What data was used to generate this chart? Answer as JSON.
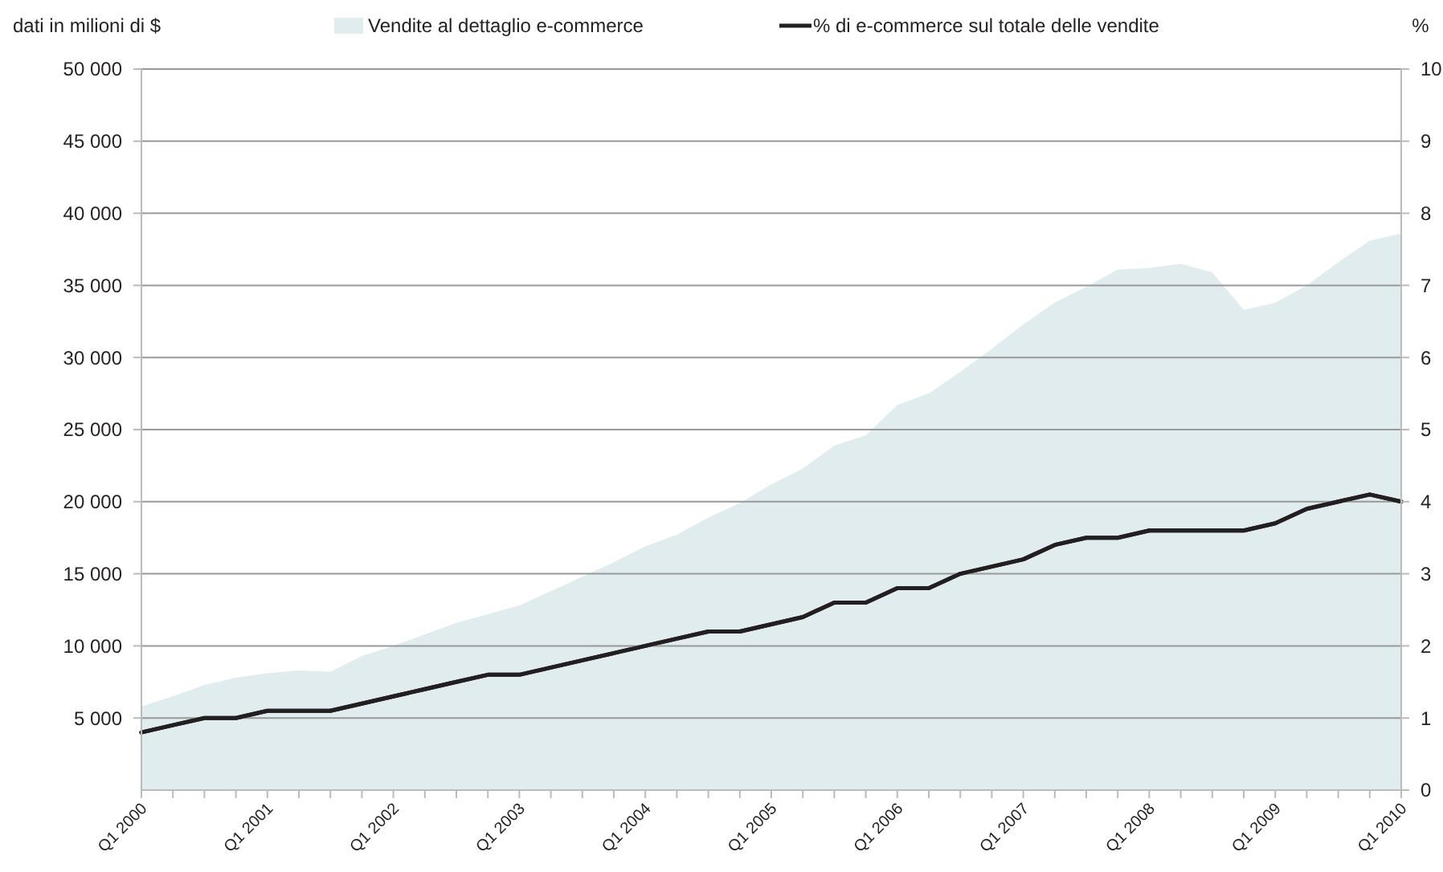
{
  "chart_data": {
    "type": "area",
    "categories": [
      "Q1 2000",
      null,
      null,
      null,
      "Q1 2001",
      null,
      null,
      null,
      "Q1 2002",
      null,
      null,
      null,
      "Q1 2003",
      null,
      null,
      null,
      "Q1 2004",
      null,
      null,
      null,
      "Q1 2005",
      null,
      null,
      null,
      "Q1 2006",
      null,
      null,
      null,
      "Q1 2007",
      null,
      null,
      null,
      "Q1 2008",
      null,
      null,
      null,
      "Q1 2009",
      null,
      null,
      null,
      "Q1 2010"
    ],
    "series": [
      {
        "name": "Vendite al dettaglio e-commerce",
        "color": "#e0ecee",
        "values": [
          5800,
          6500,
          7300,
          7800,
          8100,
          8300,
          8200,
          9300,
          10000,
          10800,
          11600,
          12200,
          12800,
          13800,
          14800,
          15800,
          16900,
          17700,
          18900,
          19900,
          21200,
          22300,
          23900,
          24600,
          26700,
          27500,
          29000,
          30600,
          32300,
          33800,
          34900,
          36100,
          36200,
          36500,
          35900,
          33300,
          33800,
          35000,
          36600,
          38100,
          38600
        ]
      },
      {
        "name": "% di e-commerce sul totale delle vendite",
        "type": "line",
        "axis": "y2",
        "color": "#231f20",
        "values": [
          0.8,
          0.9,
          1.0,
          1.0,
          1.1,
          1.1,
          1.1,
          1.2,
          1.3,
          1.4,
          1.5,
          1.6,
          1.6,
          1.7,
          1.8,
          1.9,
          2.0,
          2.1,
          2.2,
          2.2,
          2.3,
          2.4,
          2.6,
          2.6,
          2.8,
          2.8,
          3.0,
          3.1,
          3.2,
          3.4,
          3.5,
          3.5,
          3.6,
          3.6,
          3.6,
          3.6,
          3.7,
          3.9,
          4.0,
          4.1,
          4.0
        ]
      }
    ],
    "ylabel": "dati in milioni di $",
    "y2label": "%",
    "ylim": [
      0,
      50000
    ],
    "yticks": [
      {
        "value": 5000,
        "label": "5 000"
      },
      {
        "value": 10000,
        "label": "10 000"
      },
      {
        "value": 15000,
        "label": "15 000"
      },
      {
        "value": 20000,
        "label": "20 000"
      },
      {
        "value": 25000,
        "label": "25 000"
      },
      {
        "value": 30000,
        "label": "30 000"
      },
      {
        "value": 35000,
        "label": "35 000"
      },
      {
        "value": 40000,
        "label": "40 000"
      },
      {
        "value": 45000,
        "label": "45 000"
      },
      {
        "value": 50000,
        "label": "50 000"
      }
    ],
    "y2lim": [
      0,
      10
    ],
    "y2ticks": [
      0,
      1,
      2,
      3,
      4,
      5,
      6,
      7,
      8,
      9,
      10
    ],
    "grid": "y",
    "legend": "top",
    "line_style": "solid"
  }
}
